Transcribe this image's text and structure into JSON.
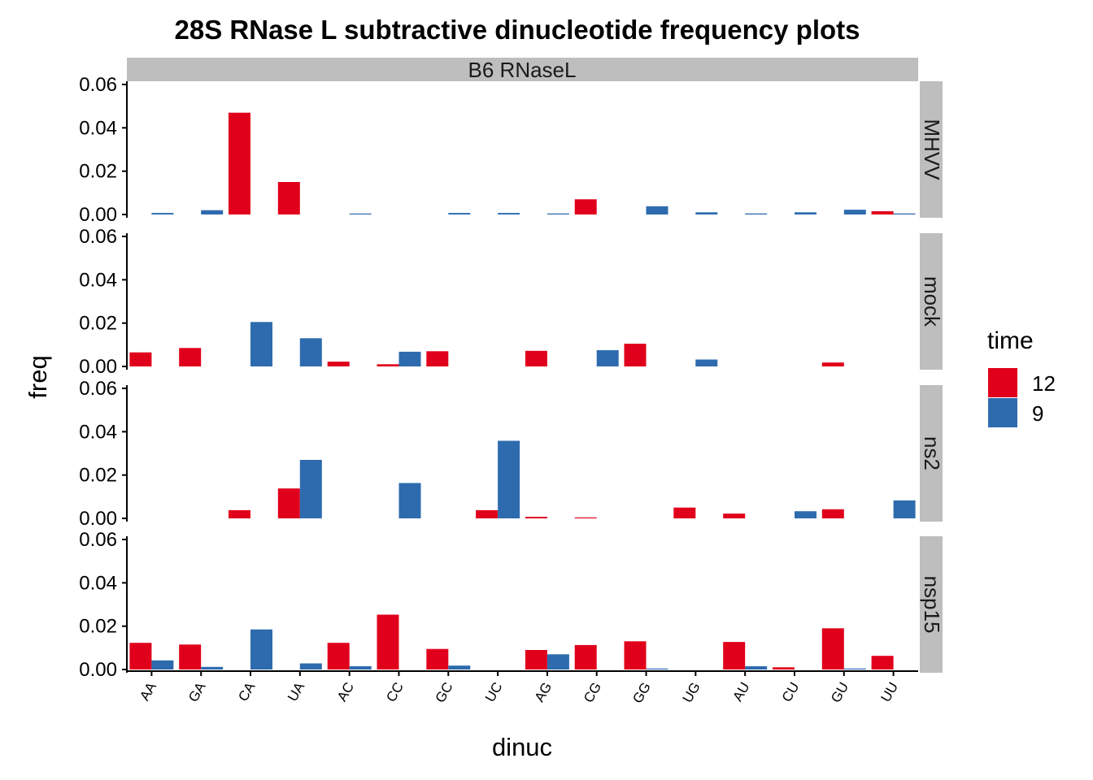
{
  "chart_data": {
    "type": "bar",
    "title": "28S RNase L subtractive dinucleotide frequency plots",
    "column_strip": "B6  RNaseL",
    "xlabel": "dinuc",
    "ylabel": "freq",
    "ylim": [
      0,
      0.06
    ],
    "yticks": [
      "0.00",
      "0.02",
      "0.04",
      "0.06"
    ],
    "categories": [
      "AA",
      "GA",
      "CA",
      "UA",
      "AC",
      "CC",
      "GC",
      "UC",
      "AG",
      "CG",
      "GG",
      "UG",
      "AU",
      "CU",
      "GU",
      "UU"
    ],
    "legend": {
      "title": "time",
      "position": "right",
      "items": [
        {
          "label": "12",
          "color": "#E0001B"
        },
        {
          "label": "9",
          "color": "#2E6BAE"
        }
      ]
    },
    "series_colors": {
      "12": "#E0001B",
      "9": "#2E6BAE"
    },
    "panels": [
      {
        "strip": "MHVV",
        "series": [
          {
            "name": "12",
            "values": [
              0,
              0,
              0.047,
              0.015,
              0,
              0,
              0,
              0,
              0,
              0.007,
              0,
              0,
              0,
              0,
              0,
              0.0015
            ]
          },
          {
            "name": "9",
            "values": [
              0.0007,
              0.002,
              0,
              0,
              0.0004,
              0,
              0.0007,
              0.0007,
              0.0005,
              0,
              0.0038,
              0.001,
              0.0005,
              0.001,
              0.0022,
              0.0005
            ]
          }
        ]
      },
      {
        "strip": "mock",
        "series": [
          {
            "name": "12",
            "values": [
              0.0065,
              0.0085,
              0,
              0,
              0.0022,
              0.001,
              0.007,
              0,
              0.0072,
              0,
              0.0105,
              0,
              0,
              0,
              0.0018,
              0
            ]
          },
          {
            "name": "9",
            "values": [
              0,
              0,
              0.0205,
              0.013,
              0,
              0.0068,
              0,
              0,
              0,
              0.0075,
              0,
              0.0032,
              0,
              0,
              0,
              0
            ]
          }
        ]
      },
      {
        "strip": "ns2",
        "series": [
          {
            "name": "12",
            "values": [
              0,
              0,
              0.0038,
              0.0138,
              0,
              0,
              0,
              0.0038,
              0.0007,
              0.0004,
              0,
              0.005,
              0.0022,
              0,
              0.0042,
              0
            ]
          },
          {
            "name": "9",
            "values": [
              0,
              0,
              0,
              0.027,
              0,
              0.0163,
              0,
              0.0358,
              0,
              0,
              0,
              0,
              0,
              0.0033,
              0,
              0.0083
            ]
          }
        ]
      },
      {
        "strip": "nsp15",
        "series": [
          {
            "name": "12",
            "values": [
              0.0123,
              0.0115,
              0,
              0,
              0.0123,
              0.0253,
              0.0095,
              0,
              0.009,
              0.0113,
              0.013,
              0,
              0.0127,
              0.001,
              0.019,
              0.0063
            ]
          },
          {
            "name": "9",
            "values": [
              0.0042,
              0.0012,
              0.0185,
              0.0028,
              0.0015,
              0,
              0.0018,
              0,
              0.007,
              0,
              0.0004,
              0,
              0.0015,
              0,
              0.0004,
              0
            ]
          }
        ]
      }
    ]
  }
}
